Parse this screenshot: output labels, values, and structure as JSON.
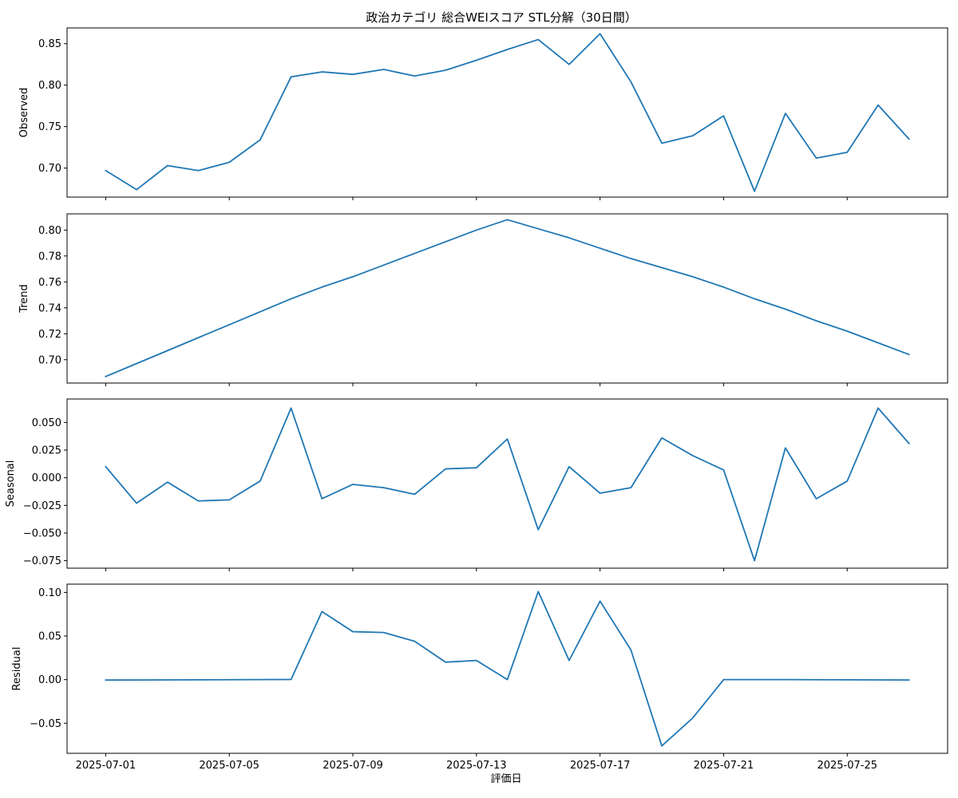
{
  "figure": {
    "title": "政治カテゴリ 総合WEIスコア STL分解（30日間）",
    "xlabel": "評価日"
  },
  "chart_data": {
    "type": "line",
    "title": "政治カテゴリ 総合WEIスコア STL分解（30日間）",
    "xlabel": "評価日",
    "line_color": "#1f77b4",
    "grid": false,
    "x_dates": [
      "2025-07-01",
      "2025-07-02",
      "2025-07-03",
      "2025-07-04",
      "2025-07-05",
      "2025-07-06",
      "2025-07-07",
      "2025-07-08",
      "2025-07-09",
      "2025-07-10",
      "2025-07-11",
      "2025-07-12",
      "2025-07-13",
      "2025-07-14",
      "2025-07-15",
      "2025-07-16",
      "2025-07-17",
      "2025-07-18",
      "2025-07-19",
      "2025-07-20",
      "2025-07-21",
      "2025-07-22",
      "2025-07-23",
      "2025-07-24",
      "2025-07-25",
      "2025-07-26",
      "2025-07-27"
    ],
    "x_ticks": [
      "2025-07-01",
      "2025-07-05",
      "2025-07-09",
      "2025-07-13",
      "2025-07-17",
      "2025-07-21",
      "2025-07-25"
    ],
    "x_range": [
      "2025-06-29 18:00",
      "2025-07-28 06:00"
    ],
    "panels": [
      {
        "ylabel": "Observed",
        "ylim": [
          0.665,
          0.869
        ],
        "yticks": [
          0.7,
          0.75,
          0.8,
          0.85
        ],
        "ytick_labels": [
          "0.70",
          "0.75",
          "0.80",
          "0.85"
        ],
        "values": [
          0.697,
          0.674,
          0.703,
          0.697,
          0.707,
          0.734,
          0.81,
          0.816,
          0.813,
          0.819,
          0.811,
          0.818,
          0.83,
          0.843,
          0.855,
          0.825,
          0.862,
          0.804,
          0.73,
          0.739,
          0.763,
          0.672,
          0.766,
          0.712,
          0.719,
          0.776,
          0.735
        ]
      },
      {
        "ylabel": "Trend",
        "ylim": [
          0.682,
          0.8125
        ],
        "yticks": [
          0.7,
          0.72,
          0.74,
          0.76,
          0.78,
          0.8
        ],
        "ytick_labels": [
          "0.70",
          "0.72",
          "0.74",
          "0.76",
          "0.78",
          "0.80"
        ],
        "values": [
          0.687,
          0.697,
          0.707,
          0.717,
          0.727,
          0.737,
          0.747,
          0.756,
          0.764,
          0.773,
          0.782,
          0.791,
          0.8,
          0.808,
          0.801,
          0.794,
          0.786,
          0.778,
          0.771,
          0.764,
          0.756,
          0.747,
          0.739,
          0.73,
          0.722,
          0.713,
          0.704
        ]
      },
      {
        "ylabel": "Seasonal",
        "ylim": [
          -0.0818,
          0.0712
        ],
        "yticks": [
          -0.075,
          -0.05,
          -0.025,
          0.0,
          0.025,
          0.05
        ],
        "ytick_labels": [
          "−0.075",
          "−0.050",
          "−0.025",
          "0.000",
          "0.025",
          "0.050"
        ],
        "values": [
          0.01,
          -0.023,
          -0.004,
          -0.021,
          -0.02,
          -0.003,
          0.063,
          -0.019,
          -0.006,
          -0.009,
          -0.015,
          0.008,
          0.009,
          0.035,
          -0.047,
          0.01,
          -0.014,
          -0.009,
          0.036,
          0.02,
          0.007,
          -0.075,
          0.027,
          -0.019,
          -0.003,
          0.063,
          0.031
        ]
      },
      {
        "ylabel": "Residual",
        "ylim": [
          -0.0845,
          0.1095
        ],
        "yticks": [
          -0.05,
          0.0,
          0.05,
          0.1
        ],
        "ytick_labels": [
          "−0.05",
          "0.00",
          "0.05",
          "0.10"
        ],
        "values": [
          -0.0005,
          -0.0004,
          -0.0003,
          -0.0002,
          -0.0001,
          0.0,
          0.0002,
          0.078,
          0.055,
          0.054,
          0.044,
          0.02,
          0.022,
          0.0,
          0.101,
          0.022,
          0.09,
          0.034,
          -0.076,
          -0.044,
          0.0,
          0.0,
          0.0,
          -0.0001,
          -0.0002,
          -0.0003,
          -0.0004
        ]
      }
    ]
  }
}
